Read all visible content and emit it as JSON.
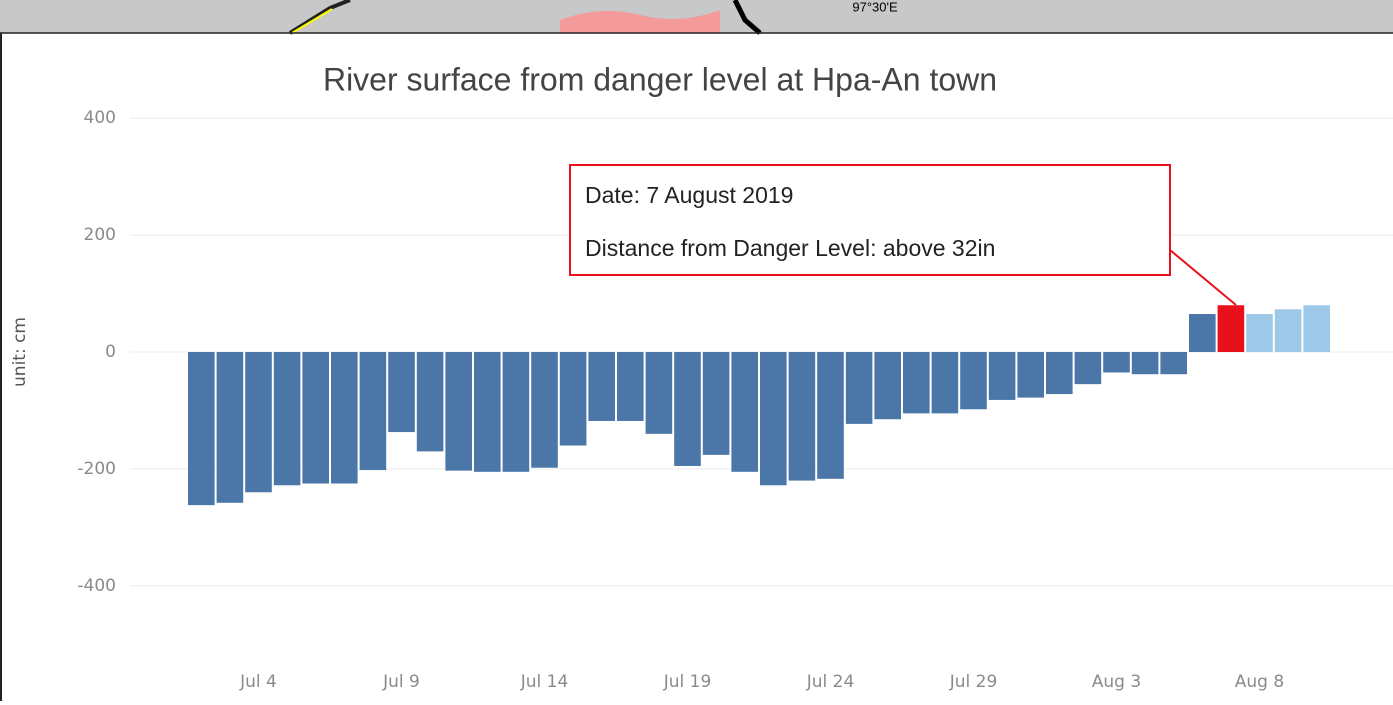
{
  "map_label": "97°30'E",
  "chart_data": {
    "type": "bar",
    "title": "River surface from danger level at Hpa-An town",
    "y_label": "unit: cm",
    "annotation": {
      "lines": [
        "Date: 7 August 2019",
        "Distance from Danger Level: above 32in"
      ]
    },
    "categories": [
      null,
      null,
      "Jul 4",
      null,
      null,
      null,
      null,
      "Jul 9",
      null,
      null,
      null,
      null,
      "Jul 14",
      null,
      null,
      null,
      null,
      "Jul 19",
      null,
      null,
      null,
      null,
      "Jul 24",
      null,
      null,
      null,
      null,
      "Jul 29",
      null,
      null,
      null,
      null,
      "Aug 3",
      null,
      null,
      null,
      null,
      "Aug 8",
      null,
      null
    ],
    "values": [
      -262,
      -258,
      -240,
      -228,
      -225,
      -225,
      -202,
      -137,
      -170,
      -203,
      -205,
      -205,
      -198,
      -160,
      -118,
      -118,
      -140,
      -195,
      -176,
      -205,
      -228,
      -220,
      -217,
      -123,
      -115,
      -105,
      -105,
      -98,
      -82,
      -78,
      -72,
      -55,
      -35,
      -38,
      -38,
      65,
      80,
      65,
      73,
      80
    ],
    "colors": [
      "#4a76a8",
      "#4a76a8",
      "#4a76a8",
      "#4a76a8",
      "#4a76a8",
      "#4a76a8",
      "#4a76a8",
      "#4a76a8",
      "#4a76a8",
      "#4a76a8",
      "#4a76a8",
      "#4a76a8",
      "#4a76a8",
      "#4a76a8",
      "#4a76a8",
      "#4a76a8",
      "#4a76a8",
      "#4a76a8",
      "#4a76a8",
      "#4a76a8",
      "#4a76a8",
      "#4a76a8",
      "#4a76a8",
      "#4a76a8",
      "#4a76a8",
      "#4a76a8",
      "#4a76a8",
      "#4a76a8",
      "#4a76a8",
      "#4a76a8",
      "#4a76a8",
      "#4a76a8",
      "#4a76a8",
      "#4a76a8",
      "#4a76a8",
      "#4a76a8",
      "#e8101a",
      "#9ec8e8",
      "#9ec8e8",
      "#9ec8e8"
    ],
    "ylim": [
      -450,
      450
    ],
    "yticks": [
      -400,
      -200,
      0,
      200,
      400
    ],
    "grid": true
  }
}
